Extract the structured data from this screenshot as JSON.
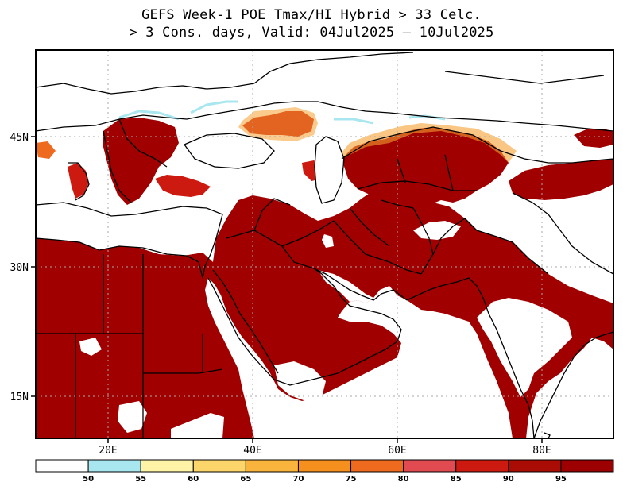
{
  "title": {
    "line1": "GEFS Week-1 POE Tmax/HI Hybrid > 33 Celc.",
    "line2": "> 3 Cons. days, Valid: 04Jul2025 — 10Jul2025"
  },
  "map": {
    "lon_ticks": [
      "20E",
      "40E",
      "60E",
      "80E"
    ],
    "lat_ticks": [
      "45N",
      "30N",
      "15N"
    ],
    "extent": {
      "lon_min": 10,
      "lon_max": 90,
      "lat_min": 10,
      "lat_max": 55
    }
  },
  "colorbar": {
    "thresholds": [
      "50",
      "55",
      "60",
      "65",
      "70",
      "75",
      "80",
      "85",
      "90",
      "95"
    ],
    "colors": [
      "#ffffff",
      "#a8e6f0",
      "#fff3a8",
      "#fcd66a",
      "#f8b43c",
      "#f5901e",
      "#ee6a1e",
      "#e04a50",
      "#cc1a10",
      "#a80c04",
      "#9c0000"
    ]
  },
  "field_colors": {
    "main": "#a00000",
    "mid": "#cc1a10",
    "light": "#ee6a1e",
    "edge": "#f5a030",
    "pale": "#fcd66a",
    "cyan": "#a8e6f0"
  }
}
